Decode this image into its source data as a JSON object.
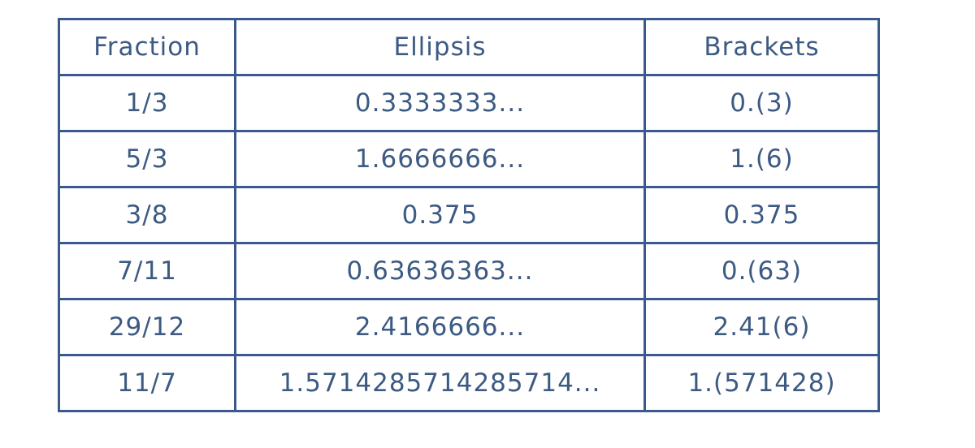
{
  "table": {
    "headers": [
      "Fraction",
      "Ellipsis",
      "Brackets"
    ],
    "rows": [
      [
        "1/3",
        "0.3333333...",
        "0.(3)"
      ],
      [
        "5/3",
        "1.6666666...",
        "1.(6)"
      ],
      [
        "3/8",
        "0.375",
        "0.375"
      ],
      [
        "7/11",
        "0.63636363...",
        "0.(63)"
      ],
      [
        "29/12",
        "2.4166666...",
        "2.41(6)"
      ],
      [
        "11/7",
        "1.5714285714285714...",
        "1.(571428)"
      ]
    ]
  },
  "colors": {
    "border": "#3a5a8c",
    "text": "#3c5a82",
    "background": "#ffffff"
  }
}
